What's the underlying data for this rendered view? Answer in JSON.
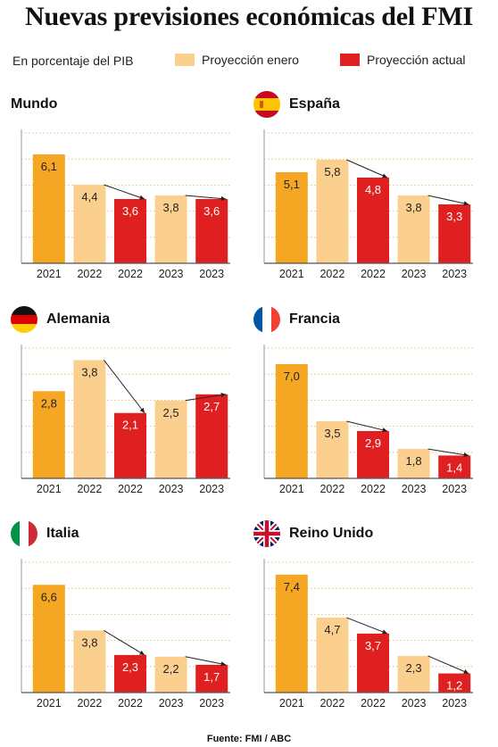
{
  "title": "Nuevas previsiones económicas del FMI",
  "legend": {
    "unit": "En porcentaje del PIB",
    "enero": "Proyección enero",
    "actual": "Proyección actual"
  },
  "colors": {
    "year2021": "#f5a623",
    "enero": "#fbcf8e",
    "actual": "#e02020",
    "grid": "#e2b35a",
    "axis": "#555555"
  },
  "source": "Fuente: FMI / ABC",
  "chart_data": [
    {
      "type": "bar",
      "title": "Mundo",
      "flag": "none",
      "categories": [
        "2021",
        "2022",
        "2022",
        "2023",
        "2023"
      ],
      "series_kind": [
        "2021",
        "enero",
        "actual",
        "enero",
        "actual"
      ],
      "values": [
        6.1,
        4.4,
        3.6,
        3.8,
        3.6
      ],
      "labels": [
        "6,1",
        "4,4",
        "3,6",
        "3,8",
        "3,6"
      ],
      "ylim": [
        0,
        7.5
      ],
      "grid": true
    },
    {
      "type": "bar",
      "title": "España",
      "flag": "spain-flag-icon",
      "categories": [
        "2021",
        "2022",
        "2022",
        "2023",
        "2023"
      ],
      "series_kind": [
        "2021",
        "enero",
        "actual",
        "enero",
        "actual"
      ],
      "values": [
        5.1,
        5.8,
        4.8,
        3.8,
        3.3
      ],
      "labels": [
        "5,1",
        "5,8",
        "4,8",
        "3,8",
        "3,3"
      ],
      "ylim": [
        0,
        7.5
      ],
      "grid": true
    },
    {
      "type": "bar",
      "title": "Alemania",
      "flag": "germany-flag-icon",
      "categories": [
        "2021",
        "2022",
        "2022",
        "2023",
        "2023"
      ],
      "series_kind": [
        "2021",
        "enero",
        "actual",
        "enero",
        "actual"
      ],
      "values": [
        2.8,
        3.8,
        2.1,
        2.5,
        2.7
      ],
      "labels": [
        "2,8",
        "3,8",
        "2,1",
        "2,5",
        "2,7"
      ],
      "ylim": [
        0,
        4.3
      ],
      "grid": true
    },
    {
      "type": "bar",
      "title": "Francia",
      "flag": "france-flag-icon",
      "categories": [
        "2021",
        "2022",
        "2022",
        "2023",
        "2023"
      ],
      "series_kind": [
        "2021",
        "enero",
        "actual",
        "enero",
        "actual"
      ],
      "values": [
        7.0,
        3.5,
        2.9,
        1.8,
        1.4
      ],
      "labels": [
        "7,0",
        "3,5",
        "2,9",
        "1,8",
        "1,4"
      ],
      "ylim": [
        0,
        8.2
      ],
      "grid": true
    },
    {
      "type": "bar",
      "title": "Italia",
      "flag": "italy-flag-icon",
      "categories": [
        "2021",
        "2022",
        "2022",
        "2023",
        "2023"
      ],
      "series_kind": [
        "2021",
        "enero",
        "actual",
        "enero",
        "actual"
      ],
      "values": [
        6.6,
        3.8,
        2.3,
        2.2,
        1.7
      ],
      "labels": [
        "6,6",
        "3,8",
        "2,3",
        "2,2",
        "1,7"
      ],
      "ylim": [
        0,
        8.2
      ],
      "grid": true
    },
    {
      "type": "bar",
      "title": "Reino Unido",
      "flag": "uk-flag-icon",
      "categories": [
        "2021",
        "2022",
        "2022",
        "2023",
        "2023"
      ],
      "series_kind": [
        "2021",
        "enero",
        "actual",
        "enero",
        "actual"
      ],
      "values": [
        7.4,
        4.7,
        3.7,
        2.3,
        1.2
      ],
      "labels": [
        "7,4",
        "4,7",
        "3,7",
        "2,3",
        "1,2"
      ],
      "ylim": [
        0,
        8.4
      ],
      "grid": true
    }
  ]
}
